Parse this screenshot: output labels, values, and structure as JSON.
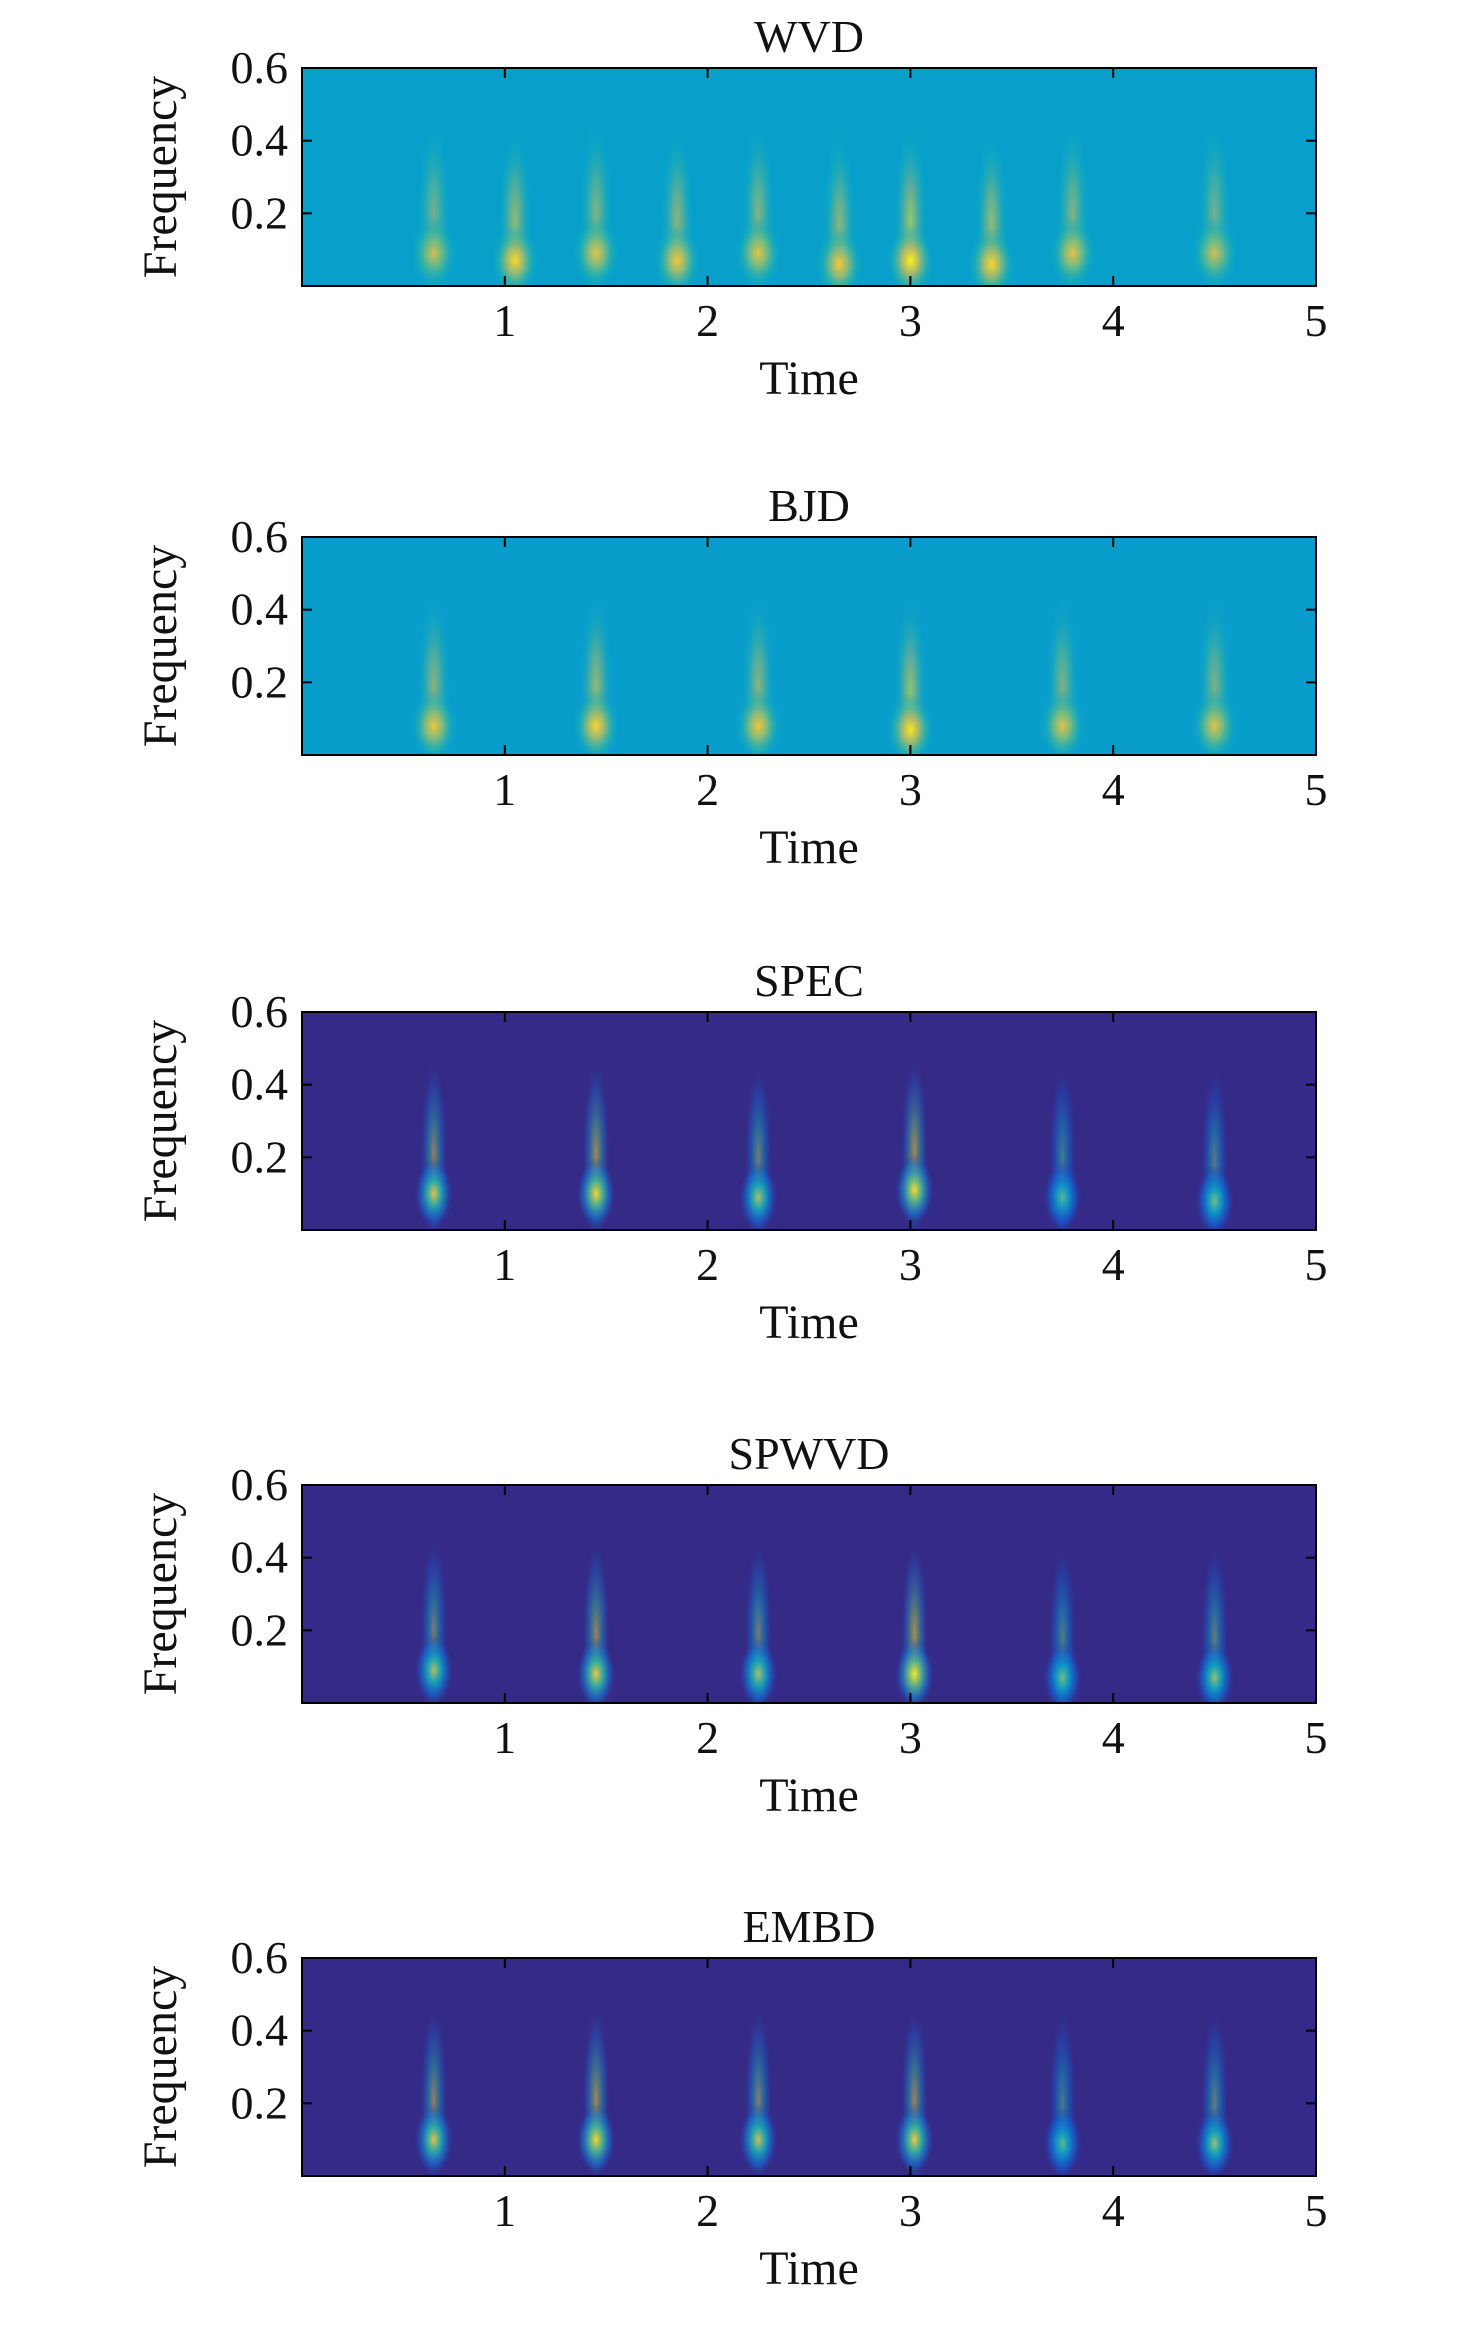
{
  "colormap": [
    "#352a87",
    "#0f5cdd",
    "#1481d6",
    "#06a4ca",
    "#2eb7a4",
    "#87bf77",
    "#d1bb59",
    "#fec832",
    "#f9fb0e"
  ],
  "chart_data": [
    {
      "type": "heatmap",
      "title": "WVD",
      "xlabel": "Time",
      "ylabel": "Frequency",
      "xlim": [
        0,
        5
      ],
      "ylim": [
        0,
        0.6
      ],
      "xticks": [
        "1",
        "2",
        "3",
        "4",
        "5"
      ],
      "yticks": [
        "0.2",
        "0.4",
        "0.6"
      ],
      "background_level": 0.36,
      "components": [
        {
          "t": 0.65,
          "f": 0.09,
          "amp": 0.4
        },
        {
          "t": 1.05,
          "f": 0.07,
          "amp": 0.55
        },
        {
          "t": 1.45,
          "f": 0.09,
          "amp": 0.45
        },
        {
          "t": 1.85,
          "f": 0.07,
          "amp": 0.5
        },
        {
          "t": 2.25,
          "f": 0.09,
          "amp": 0.45
        },
        {
          "t": 2.65,
          "f": 0.06,
          "amp": 0.5
        },
        {
          "t": 3.0,
          "f": 0.07,
          "amp": 0.62
        },
        {
          "t": 3.4,
          "f": 0.06,
          "amp": 0.55
        },
        {
          "t": 3.8,
          "f": 0.09,
          "amp": 0.45
        },
        {
          "t": 4.5,
          "f": 0.09,
          "amp": 0.4
        }
      ]
    },
    {
      "type": "heatmap",
      "title": "BJD",
      "xlabel": "Time",
      "ylabel": "Frequency",
      "xlim": [
        0,
        5
      ],
      "ylim": [
        0,
        0.6
      ],
      "xticks": [
        "1",
        "2",
        "3",
        "4",
        "5"
      ],
      "yticks": [
        "0.2",
        "0.4",
        "0.6"
      ],
      "background_level": 0.35,
      "components": [
        {
          "t": 0.65,
          "f": 0.08,
          "amp": 0.5
        },
        {
          "t": 1.45,
          "f": 0.08,
          "amp": 0.55
        },
        {
          "t": 2.25,
          "f": 0.08,
          "amp": 0.5
        },
        {
          "t": 3.0,
          "f": 0.07,
          "amp": 0.6
        },
        {
          "t": 3.75,
          "f": 0.08,
          "amp": 0.45
        },
        {
          "t": 4.5,
          "f": 0.08,
          "amp": 0.45
        }
      ]
    },
    {
      "type": "heatmap",
      "title": "SPEC",
      "xlabel": "Time",
      "ylabel": "Frequency",
      "xlim": [
        0,
        5
      ],
      "ylim": [
        0,
        0.6
      ],
      "xticks": [
        "1",
        "2",
        "3",
        "4",
        "5"
      ],
      "yticks": [
        "0.2",
        "0.4",
        "0.6"
      ],
      "background_level": 0.0,
      "components": [
        {
          "t": 0.65,
          "f": 0.1,
          "amp": 0.8
        },
        {
          "t": 1.45,
          "f": 0.1,
          "amp": 0.9
        },
        {
          "t": 2.25,
          "f": 0.09,
          "amp": 0.7
        },
        {
          "t": 3.02,
          "f": 0.11,
          "amp": 0.92
        },
        {
          "t": 3.75,
          "f": 0.09,
          "amp": 0.55
        },
        {
          "t": 4.5,
          "f": 0.08,
          "amp": 0.6
        }
      ]
    },
    {
      "type": "heatmap",
      "title": "SPWVD",
      "xlabel": "Time",
      "ylabel": "Frequency",
      "xlim": [
        0,
        5
      ],
      "ylim": [
        0,
        0.6
      ],
      "xticks": [
        "1",
        "2",
        "3",
        "4",
        "5"
      ],
      "yticks": [
        "0.2",
        "0.4",
        "0.6"
      ],
      "background_level": 0.0,
      "components": [
        {
          "t": 0.65,
          "f": 0.09,
          "amp": 0.7
        },
        {
          "t": 1.45,
          "f": 0.08,
          "amp": 0.85
        },
        {
          "t": 2.25,
          "f": 0.08,
          "amp": 0.7
        },
        {
          "t": 3.02,
          "f": 0.08,
          "amp": 0.95
        },
        {
          "t": 3.75,
          "f": 0.07,
          "amp": 0.6
        },
        {
          "t": 4.5,
          "f": 0.07,
          "amp": 0.65
        }
      ]
    },
    {
      "type": "heatmap",
      "title": "EMBD",
      "xlabel": "Time",
      "ylabel": "Frequency",
      "xlim": [
        0,
        5
      ],
      "ylim": [
        0,
        0.6
      ],
      "xticks": [
        "1",
        "2",
        "3",
        "4",
        "5"
      ],
      "yticks": [
        "0.2",
        "0.4",
        "0.6"
      ],
      "background_level": 0.0,
      "components": [
        {
          "t": 0.65,
          "f": 0.1,
          "amp": 0.8
        },
        {
          "t": 1.45,
          "f": 0.1,
          "amp": 0.9
        },
        {
          "t": 2.25,
          "f": 0.1,
          "amp": 0.75
        },
        {
          "t": 3.02,
          "f": 0.1,
          "amp": 0.85
        },
        {
          "t": 3.75,
          "f": 0.09,
          "amp": 0.55
        },
        {
          "t": 4.5,
          "f": 0.09,
          "amp": 0.65
        }
      ]
    }
  ]
}
